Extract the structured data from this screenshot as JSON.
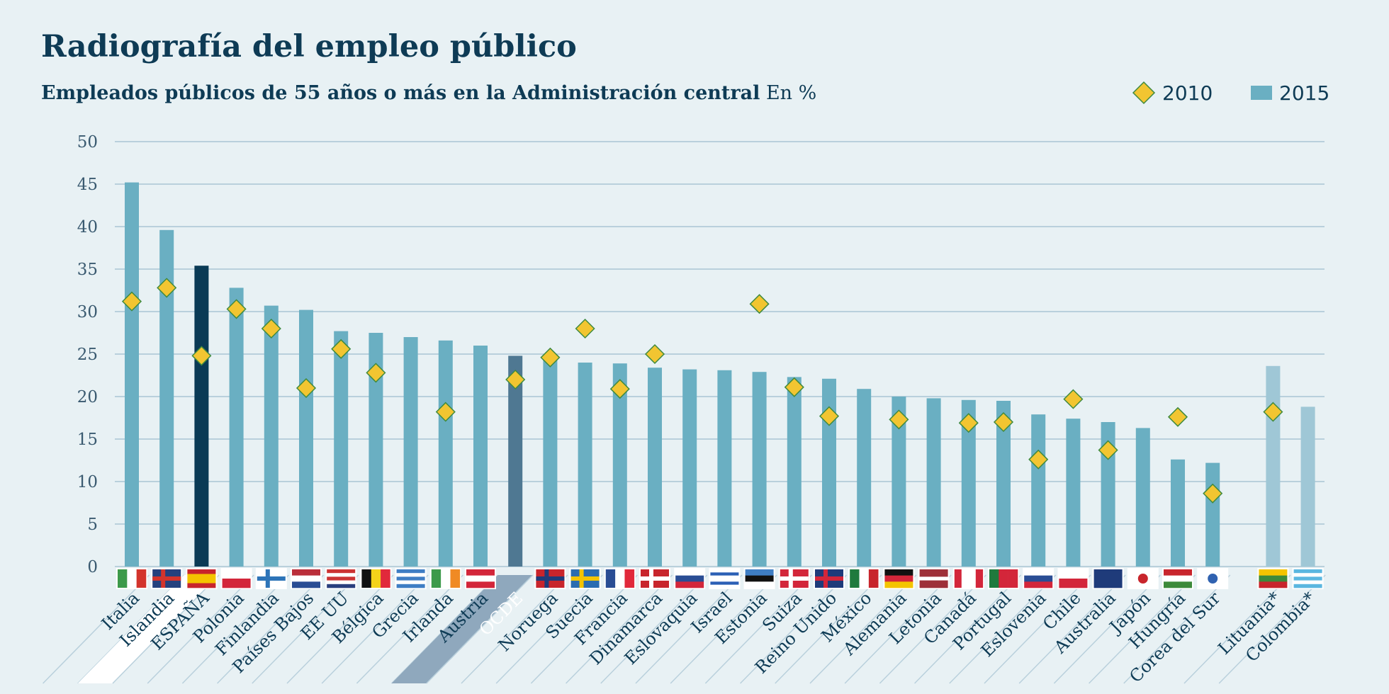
{
  "chart_data": {
    "type": "bar",
    "title": "Radiografía del empleo público",
    "subtitle": "Empleados públicos de 55 años o más en la Administración central",
    "subtitle_unit": "En %",
    "categories": [
      "Italia",
      "Islandia",
      "ESPAÑA",
      "Polonia",
      "Finlandia",
      "Países Bajos",
      "EE UU",
      "Bélgica",
      "Grecia",
      "Irlanda",
      "Austria",
      "OCDE",
      "Noruega",
      "Suecia",
      "Francia",
      "Dinamarca",
      "Eslovaquia",
      "Israel",
      "Estonia",
      "Suiza",
      "Reino Unido",
      "México",
      "Alemania",
      "Letonia",
      "Canadá",
      "Portugal",
      "Eslovenia",
      "Chile",
      "Australia",
      "Japón",
      "Hungría",
      "Corea del Sur",
      "Lituania*",
      "Colombia*"
    ],
    "series": [
      {
        "name": "2010",
        "marker": "diamond",
        "color": "#f2c531",
        "values": [
          31.2,
          32.8,
          24.8,
          30.3,
          28.0,
          21.0,
          25.6,
          22.8,
          null,
          18.2,
          null,
          22.0,
          24.6,
          28.0,
          20.9,
          25.0,
          null,
          null,
          30.9,
          21.1,
          17.7,
          null,
          17.3,
          null,
          16.9,
          17.0,
          12.6,
          19.7,
          13.7,
          null,
          17.6,
          8.6,
          18.2,
          null
        ]
      },
      {
        "name": "2015",
        "color": "#6aafc2",
        "colors": [
          "#6aafc2",
          "#6aafc2",
          "#0a3a55",
          "#6aafc2",
          "#6aafc2",
          "#6aafc2",
          "#6aafc2",
          "#6aafc2",
          "#6aafc2",
          "#6aafc2",
          "#6aafc2",
          "#4f7892",
          "#6aafc2",
          "#6aafc2",
          "#6aafc2",
          "#6aafc2",
          "#6aafc2",
          "#6aafc2",
          "#6aafc2",
          "#6aafc2",
          "#6aafc2",
          "#6aafc2",
          "#6aafc2",
          "#6aafc2",
          "#6aafc2",
          "#6aafc2",
          "#6aafc2",
          "#6aafc2",
          "#6aafc2",
          "#6aafc2",
          "#6aafc2",
          "#6aafc2",
          "#9fc7d6",
          "#9fc7d6"
        ],
        "values": [
          45.2,
          39.6,
          35.4,
          32.8,
          30.7,
          30.2,
          27.7,
          27.5,
          27.0,
          26.6,
          26.0,
          24.8,
          24.7,
          24.0,
          23.9,
          23.4,
          23.2,
          23.1,
          22.9,
          22.3,
          22.1,
          20.9,
          20.0,
          19.8,
          19.6,
          19.5,
          17.9,
          17.4,
          17.0,
          16.3,
          12.6,
          12.2,
          23.6,
          18.8
        ]
      }
    ],
    "ylim": [
      0,
      50
    ],
    "yticks": [
      0,
      5,
      10,
      15,
      20,
      25,
      30,
      35,
      40,
      45,
      50
    ],
    "grid": true
  }
}
